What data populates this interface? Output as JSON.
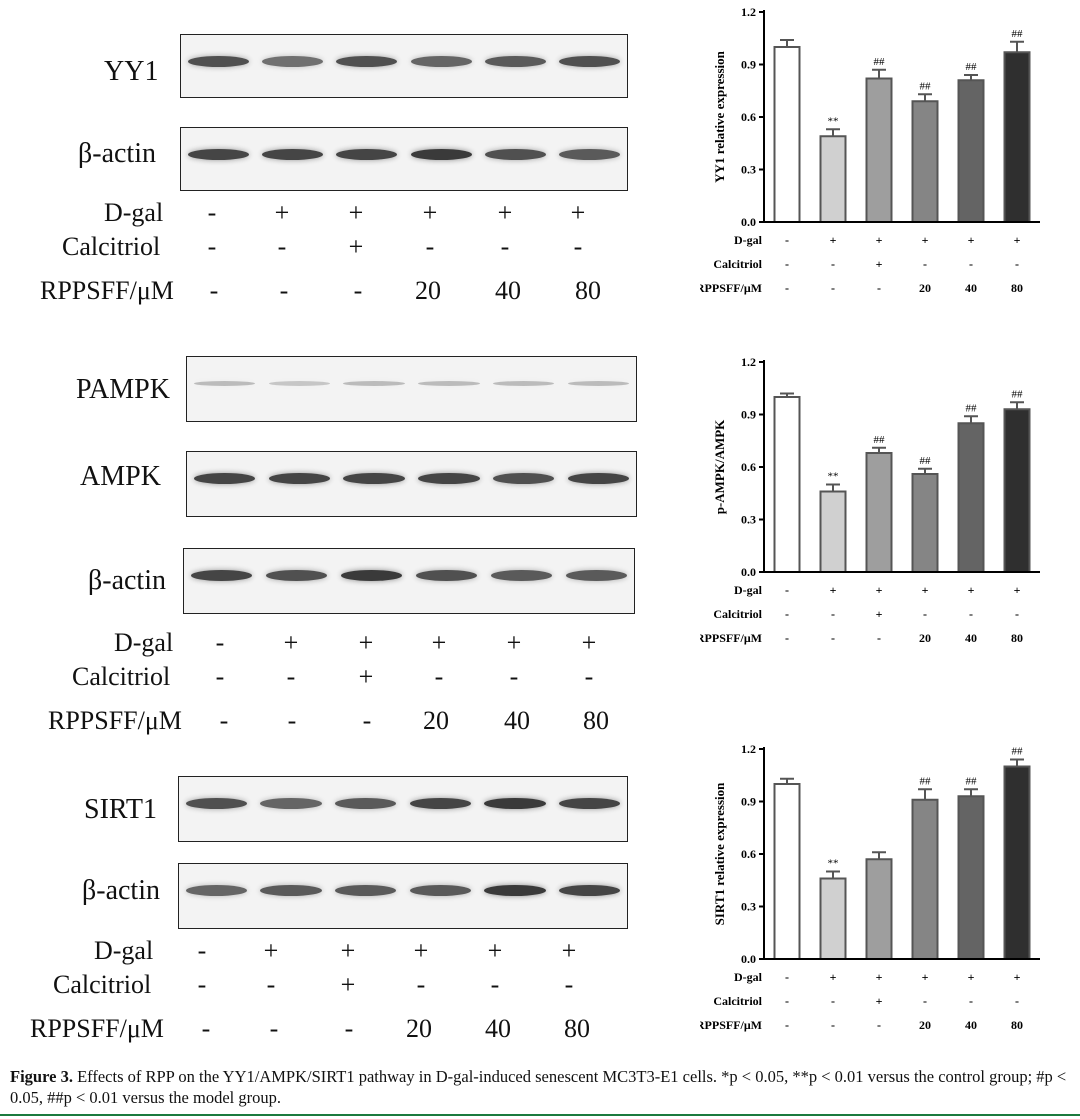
{
  "conditions": {
    "dgal_label": "D-gal",
    "calcitriol_label": "Calcitriol",
    "rppsff_label": "RPPSFF/μM",
    "dgal": [
      "-",
      "+",
      "+",
      "+",
      "+",
      "+"
    ],
    "calcitriol": [
      "-",
      "-",
      "+",
      "-",
      "-",
      "-"
    ],
    "rppsff": [
      "-",
      "-",
      "-",
      "20",
      "40",
      "80"
    ]
  },
  "blots": [
    {
      "labels": [
        "YY1",
        "β-actin"
      ]
    },
    {
      "labels": [
        "PAMPK",
        "AMPK",
        "β-actin"
      ]
    },
    {
      "labels": [
        "SIRT1",
        "β-actin"
      ]
    }
  ],
  "chart_data": [
    {
      "type": "bar",
      "ylabel": "YY1 relative expression",
      "ylim": [
        0,
        1.2
      ],
      "yticks": [
        "0.0",
        "0.3",
        "0.6",
        "0.9",
        "1.2"
      ],
      "values": [
        1.0,
        0.49,
        0.82,
        0.69,
        0.81,
        0.97
      ],
      "errors": [
        0.04,
        0.04,
        0.05,
        0.04,
        0.03,
        0.06
      ],
      "annotations": [
        "",
        "**",
        "##",
        "##",
        "##",
        "##"
      ],
      "colors": [
        "#ffffff",
        "#d0d0d0",
        "#9e9e9e",
        "#858585",
        "#646464",
        "#2f2f2f"
      ]
    },
    {
      "type": "bar",
      "ylabel": "p-AMPK/AMPK",
      "ylim": [
        0,
        1.2
      ],
      "yticks": [
        "0.0",
        "0.3",
        "0.6",
        "0.9",
        "1.2"
      ],
      "values": [
        1.0,
        0.46,
        0.68,
        0.56,
        0.85,
        0.93
      ],
      "errors": [
        0.02,
        0.04,
        0.03,
        0.03,
        0.04,
        0.04
      ],
      "annotations": [
        "",
        "**",
        "##",
        "##",
        "##",
        "##"
      ],
      "colors": [
        "#ffffff",
        "#d0d0d0",
        "#9e9e9e",
        "#858585",
        "#646464",
        "#2f2f2f"
      ]
    },
    {
      "type": "bar",
      "ylabel": "SIRT1 relative expression",
      "ylim": [
        0,
        1.2
      ],
      "yticks": [
        "0.0",
        "0.3",
        "0.6",
        "0.9",
        "1.2"
      ],
      "values": [
        1.0,
        0.46,
        0.57,
        0.91,
        0.93,
        1.1
      ],
      "errors": [
        0.03,
        0.04,
        0.04,
        0.06,
        0.04,
        0.04
      ],
      "annotations": [
        "",
        "**",
        "",
        "##",
        "##",
        "##"
      ],
      "colors": [
        "#ffffff",
        "#d0d0d0",
        "#9e9e9e",
        "#858585",
        "#646464",
        "#2f2f2f"
      ]
    }
  ],
  "caption": {
    "label": "Figure 3.",
    "text": "Effects of RPP on the YY1/AMPK/SIRT1 pathway in D-gal-induced senescent MC3T3-E1 cells. *p < 0.05, **p < 0.01 versus the control group; #p < 0.05, ##p < 0.01 versus the model group."
  }
}
